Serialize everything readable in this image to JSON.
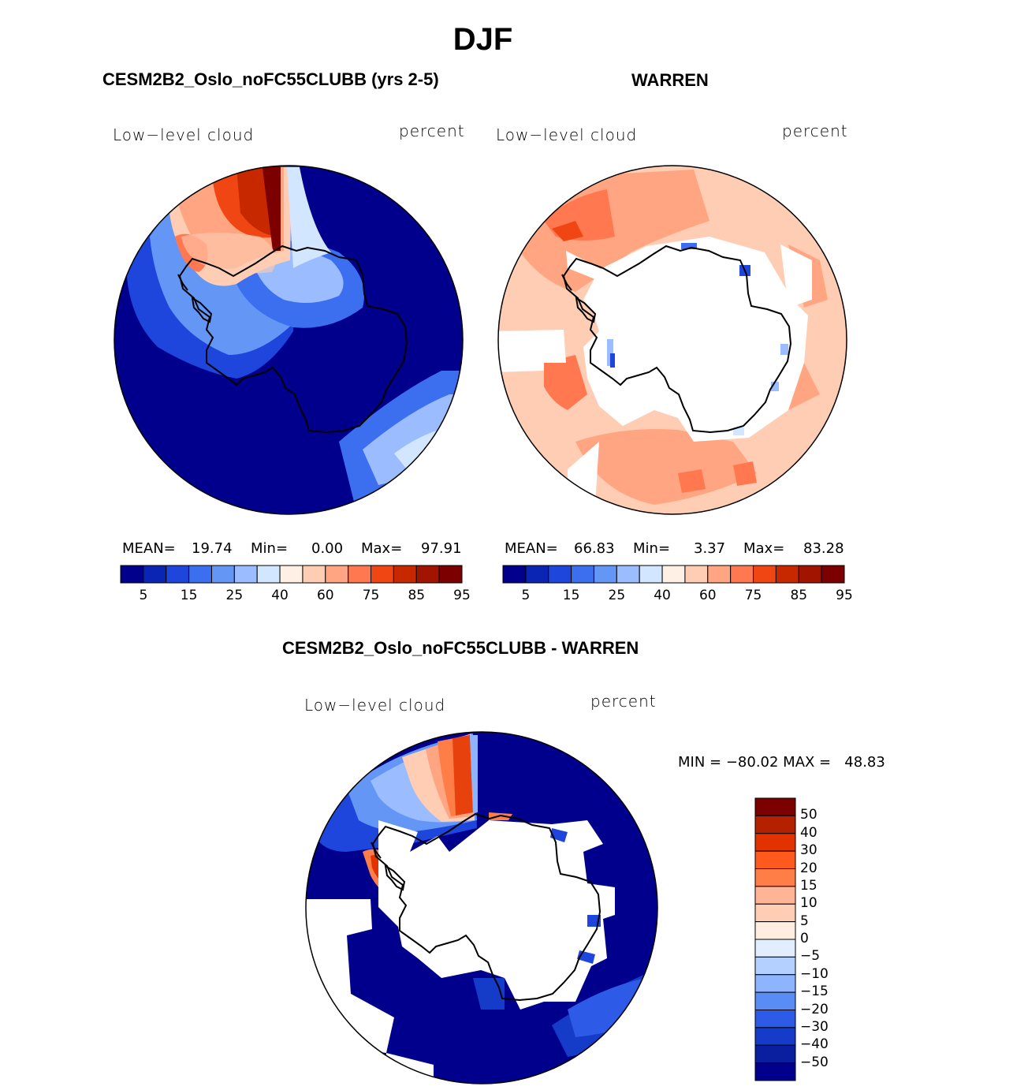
{
  "title": "DJF",
  "panels": [
    {
      "title": "CESM2B2_Oslo_noFC55CLUBB (yrs 2-5)",
      "variable": "Low−level cloud",
      "units": "percent",
      "stats": {
        "mean_label": "MEAN=",
        "mean": "19.74",
        "min_label": "Min=",
        "min": "0.00",
        "max_label": "Max=",
        "max": "97.91"
      }
    },
    {
      "title": "WARREN",
      "variable": "Low−level cloud",
      "units": "percent",
      "stats": {
        "mean_label": "MEAN=",
        "mean": "66.83",
        "min_label": "Min=",
        "min": "3.37",
        "max_label": "Max=",
        "max": "83.28"
      }
    },
    {
      "title": "CESM2B2_Oslo_noFC55CLUBB - WARREN",
      "variable": "Low−level cloud",
      "units": "percent",
      "stats_line": "MIN = −80.02 MAX =   48.83"
    }
  ],
  "colorbar_top": {
    "colors": [
      "#00008c",
      "#0a24b4",
      "#1e46dc",
      "#3c6ef0",
      "#6496f5",
      "#9bbcff",
      "#d2e6ff",
      "#fff0e6",
      "#ffcdb4",
      "#ffa582",
      "#ff7850",
      "#f04614",
      "#c82800",
      "#a01400",
      "#7d0000"
    ],
    "tick_labels": [
      "5",
      "15",
      "25",
      "40",
      "60",
      "75",
      "85",
      "95"
    ]
  },
  "colorbar_diff": {
    "colors": [
      "#7d0000",
      "#b42000",
      "#e13200",
      "#ff5a1e",
      "#ff7d46",
      "#ffb496",
      "#ffcdb4",
      "#ffeee0",
      "#e1eeff",
      "#b4d0ff",
      "#8cb4ff",
      "#5a8cf5",
      "#2d5ae6",
      "#143cc8",
      "#0a1ea0",
      "#00008c"
    ],
    "tick_labels": [
      "50",
      "40",
      "30",
      "20",
      "15",
      "10",
      "5",
      "0",
      "−5",
      "−10",
      "−15",
      "−20",
      "−30",
      "−40",
      "−50"
    ]
  },
  "chart_data": [
    {
      "type": "heatmap",
      "projection": "south-polar-stereographic",
      "title": "CESM2B2_Oslo_noFC55CLUBB (yrs 2-5)",
      "variable": "Low-level cloud",
      "units": "percent",
      "season": "DJF",
      "contour_levels": [
        5,
        10,
        15,
        20,
        25,
        30,
        40,
        50,
        60,
        70,
        75,
        80,
        85,
        90,
        95
      ],
      "mean": 19.74,
      "min": 0.0,
      "max": 97.91
    },
    {
      "type": "heatmap",
      "projection": "south-polar-stereographic",
      "title": "WARREN",
      "variable": "Low-level cloud",
      "units": "percent",
      "season": "DJF",
      "contour_levels": [
        5,
        10,
        15,
        20,
        25,
        30,
        40,
        50,
        60,
        70,
        75,
        80,
        85,
        90,
        95
      ],
      "mean": 66.83,
      "min": 3.37,
      "max": 83.28
    },
    {
      "type": "heatmap",
      "projection": "south-polar-stereographic",
      "title": "CESM2B2_Oslo_noFC55CLUBB - WARREN",
      "variable": "Low-level cloud",
      "units": "percent",
      "season": "DJF",
      "contour_levels": [
        -50,
        -40,
        -30,
        -20,
        -15,
        -10,
        -5,
        0,
        5,
        10,
        15,
        20,
        30,
        40,
        50
      ],
      "min": -80.02,
      "max": 48.83
    }
  ]
}
